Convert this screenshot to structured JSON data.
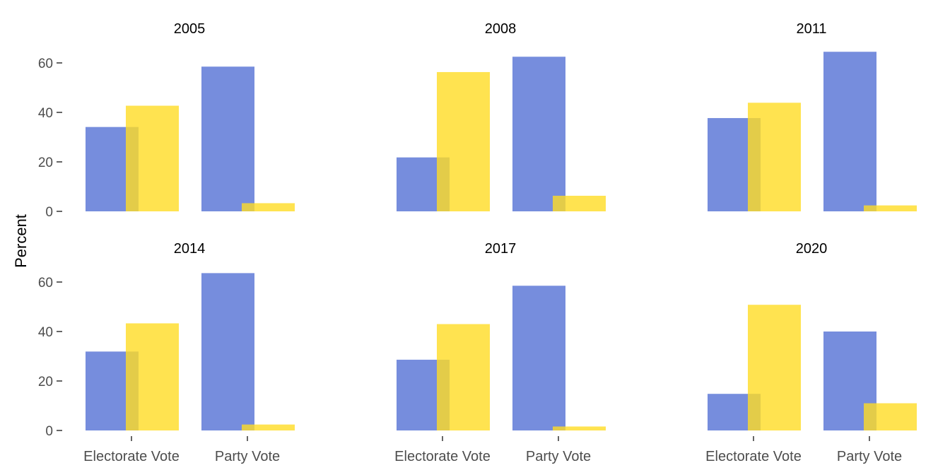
{
  "chart_data": {
    "type": "bar",
    "ylabel": "Percent",
    "xlabel": "",
    "ylim": [
      0,
      66
    ],
    "yticks": [
      0,
      20,
      40,
      60
    ],
    "categories": [
      "Electorate Vote",
      "Party Vote"
    ],
    "grid": false,
    "legend": "none",
    "colors": {
      "series_a": "#5470d4",
      "series_b": "#ffdc24",
      "opacity": 0.8
    },
    "panels": [
      {
        "title": "2005",
        "series": [
          {
            "values": [
              34.1,
              58.5
            ]
          },
          {
            "values": [
              42.7,
              3.3
            ]
          }
        ]
      },
      {
        "title": "2008",
        "series": [
          {
            "values": [
              21.8,
              62.5
            ]
          },
          {
            "values": [
              56.3,
              6.3
            ]
          }
        ]
      },
      {
        "title": "2011",
        "series": [
          {
            "values": [
              37.7,
              64.5
            ]
          },
          {
            "values": [
              43.9,
              2.4
            ]
          }
        ]
      },
      {
        "title": "2014",
        "series": [
          {
            "values": [
              31.9,
              63.6
            ]
          },
          {
            "values": [
              43.3,
              2.4
            ]
          }
        ]
      },
      {
        "title": "2017",
        "series": [
          {
            "values": [
              28.6,
              58.5
            ]
          },
          {
            "values": [
              43.0,
              1.6
            ]
          }
        ]
      },
      {
        "title": "2020",
        "series": [
          {
            "values": [
              14.8,
              40.0
            ]
          },
          {
            "values": [
              50.8,
              11.0
            ]
          }
        ]
      }
    ]
  }
}
